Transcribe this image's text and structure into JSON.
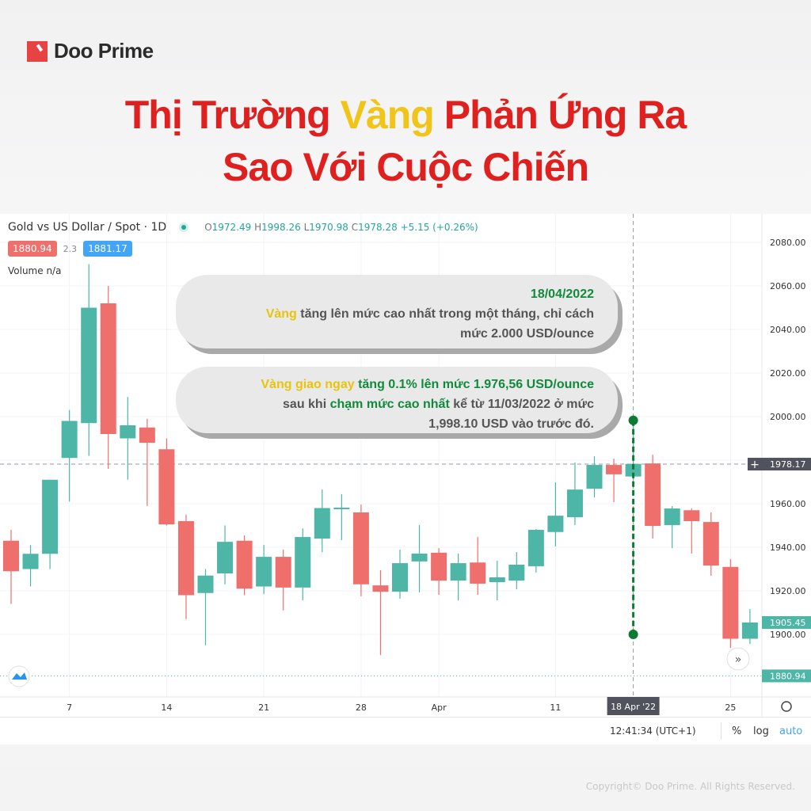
{
  "brand": {
    "name": "Doo Prime",
    "accent": "#e84343"
  },
  "title": {
    "line1_a": "Thị Trường ",
    "line1_gold": "Vàng",
    "line1_b": " Phản Ứng Ra",
    "line2": "Sao Với Cuộc Chiến"
  },
  "legend": {
    "symbol": "Gold vs US Dollar / Spot · 1D",
    "o_label": "O",
    "o": "1972.49",
    "h_label": "H",
    "h": "1998.26",
    "l_label": "L",
    "l": "1970.98",
    "c_label": "C",
    "c": "1978.28",
    "change": "+5.15 (+0.26%)",
    "bid": "1880.94",
    "spread": "2.3",
    "ask": "1881.17",
    "volume": "Volume  n/a"
  },
  "callout1": {
    "date": "18/04/2022",
    "gold": "Vàng",
    "text": " tăng lên mức cao nhất trong một tháng, chỉ cách",
    "line3": "mức 2.000 USD/ounce"
  },
  "callout2": {
    "gold": "Vàng giao ngay",
    "green1": " tăng 0.1% lên mức 1.976,56 USD/ounce",
    "l2a": "sau khi ",
    "green2": "chạm mức cao nhất",
    "l2b": " kể từ 11/03/2022 ở mức",
    "line3": "1,998.10 USD vào trước đó."
  },
  "bottom": {
    "time": "12:41:34 (UTC+1)",
    "percent": "%",
    "log": "log",
    "auto": "auto"
  },
  "footer": "Copyright© Doo Prime. All Rights Reserved.",
  "chart_data": {
    "type": "candlestick",
    "colors": {
      "up": "#4db6a6",
      "down": "#ef6f6c",
      "highlight": "#0f7a33"
    },
    "ylim": [
      1880,
      2090
    ],
    "y_ticks": [
      2080,
      2060,
      2040,
      2020,
      2000,
      1980,
      1960,
      1940,
      1920,
      1900
    ],
    "x_ticks": [
      {
        "i": 3,
        "label": "7"
      },
      {
        "i": 8,
        "label": "14"
      },
      {
        "i": 13,
        "label": "21"
      },
      {
        "i": 18,
        "label": "28"
      },
      {
        "i": 22,
        "label": "Apr"
      },
      {
        "i": 28,
        "label": "11"
      },
      {
        "i": 37,
        "label": "25"
      }
    ],
    "crosshair": {
      "i": 32,
      "date_label": "18 Apr '22",
      "price_label": "1978.17",
      "price": 1978.17
    },
    "last_price": {
      "label": "1905.45",
      "price": 1905.45
    },
    "bid_line": {
      "label": "1880.94",
      "price": 1880.94
    },
    "highlight_range": [
      1998.26,
      1900
    ],
    "dates": [
      "Mar 2",
      "Mar 3",
      "Mar 4",
      "Mar 7",
      "Mar 8",
      "Mar 9",
      "Mar 10",
      "Mar 11",
      "Mar 14",
      "Mar 15",
      "Mar 16",
      "Mar 17",
      "Mar 18",
      "Mar 21",
      "Mar 22",
      "Mar 23",
      "Mar 24",
      "Mar 25",
      "Mar 28",
      "Mar 29",
      "Mar 30",
      "Mar 31",
      "Apr 1",
      "Apr 4",
      "Apr 5",
      "Apr 6",
      "Apr 7",
      "Apr 8",
      "Apr 11",
      "Apr 12",
      "Apr 13",
      "Apr 14",
      "Apr 18",
      "Apr 19",
      "Apr 20",
      "Apr 21",
      "Apr 22",
      "Apr 25",
      "Apr 26"
    ],
    "ohlc": [
      [
        1943,
        1948,
        1914,
        1929
      ],
      [
        1930,
        1941,
        1922,
        1937
      ],
      [
        1937,
        1971,
        1930,
        1971
      ],
      [
        1981,
        2003,
        1961,
        1998
      ],
      [
        1997,
        2070,
        1982,
        2050
      ],
      [
        2052,
        2060,
        1976,
        1992
      ],
      [
        1990,
        2009,
        1971,
        1996
      ],
      [
        1995,
        1999,
        1959,
        1988
      ],
      [
        1985,
        1990,
        1950,
        1950.5
      ],
      [
        1952,
        1955,
        1907,
        1918
      ],
      [
        1919,
        1930,
        1895,
        1927
      ],
      [
        1928,
        1950,
        1923,
        1942.5
      ],
      [
        1943,
        1945.5,
        1918,
        1921
      ],
      [
        1922,
        1941,
        1918.5,
        1935.6
      ],
      [
        1935.6,
        1939,
        1911,
        1921.5
      ],
      [
        1921.5,
        1948.7,
        1915.6,
        1944.7
      ],
      [
        1944,
        1966.5,
        1937.8,
        1958
      ],
      [
        1957.6,
        1964.4,
        1943.3,
        1958.2
      ],
      [
        1956,
        1959.6,
        1917.5,
        1923
      ],
      [
        1922.5,
        1929.5,
        1890.5,
        1919.6
      ],
      [
        1919.6,
        1938.9,
        1916.4,
        1932.7
      ],
      [
        1933.5,
        1950.2,
        1919.3,
        1937.1
      ],
      [
        1937.5,
        1939.6,
        1918.2,
        1924.7
      ],
      [
        1924.7,
        1937.1,
        1915.6,
        1932.7
      ],
      [
        1933,
        1944.7,
        1918.2,
        1923.3
      ],
      [
        1924,
        1933.8,
        1915.6,
        1926.2
      ],
      [
        1924.7,
        1937.8,
        1920.7,
        1932
      ],
      [
        1931.3,
        1948.4,
        1928.4,
        1948
      ],
      [
        1947,
        1969.8,
        1940.4,
        1954.5
      ],
      [
        1953.8,
        1978.9,
        1950.2,
        1966.5
      ],
      [
        1966.9,
        1981.8,
        1962.9,
        1977.8
      ],
      [
        1977.8,
        1980.7,
        1960.7,
        1973.5
      ],
      [
        1972.49,
        1998.26,
        1970.98,
        1978.28
      ],
      [
        1978.5,
        1982.5,
        1944,
        1949.8
      ],
      [
        1950.2,
        1958.9,
        1939.6,
        1957.8
      ],
      [
        1957,
        1957.8,
        1937.1,
        1952
      ],
      [
        1951.6,
        1956,
        1926.9,
        1931.6
      ],
      [
        1931,
        1934.5,
        1893.8,
        1898
      ],
      [
        1898,
        1911.6,
        1895.6,
        1905.45
      ]
    ]
  }
}
